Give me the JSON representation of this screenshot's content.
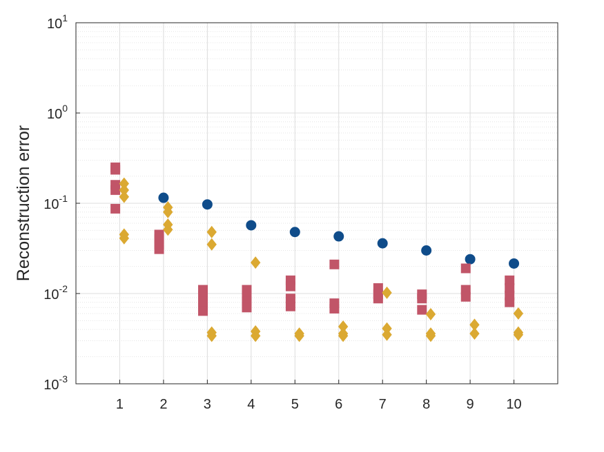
{
  "chart_data": {
    "type": "scatter",
    "title": "",
    "xlabel": "",
    "ylabel": "Reconstruction error",
    "y_scale": "log",
    "xlim": [
      0,
      11
    ],
    "ylim": [
      0.001,
      10
    ],
    "x_ticks": [
      1,
      2,
      3,
      4,
      5,
      6,
      7,
      8,
      9,
      10
    ],
    "x_tick_labels": [
      "1",
      "2",
      "3",
      "4",
      "5",
      "6",
      "7",
      "8",
      "9",
      "10"
    ],
    "y_ticks": [
      {
        "value": 0.001,
        "base": "10",
        "exp": "-3"
      },
      {
        "value": 0.01,
        "base": "10",
        "exp": "-2"
      },
      {
        "value": 0.1,
        "base": "10",
        "exp": "-1"
      },
      {
        "value": 1,
        "base": "10",
        "exp": "0"
      },
      {
        "value": 10,
        "base": "10",
        "exp": "1"
      }
    ],
    "grid": true,
    "minor_grid": true,
    "legend": "none",
    "series": [
      {
        "marker": "circle",
        "color": "#0f4c8a",
        "points": [
          [
            2,
            0.115
          ],
          [
            3,
            0.097
          ],
          [
            4,
            0.057
          ],
          [
            5,
            0.048
          ],
          [
            6,
            0.043
          ],
          [
            7,
            0.036
          ],
          [
            8,
            0.03
          ],
          [
            9,
            0.024
          ],
          [
            10,
            0.0215
          ]
        ]
      },
      {
        "marker": "square",
        "color": "#c15568",
        "points": [
          [
            0.9,
            0.25
          ],
          [
            0.9,
            0.235
          ],
          [
            0.9,
            0.16
          ],
          [
            0.9,
            0.14
          ],
          [
            0.9,
            0.087
          ],
          [
            1.9,
            0.045
          ],
          [
            1.9,
            0.04
          ],
          [
            1.9,
            0.035
          ],
          [
            1.9,
            0.031
          ],
          [
            2.9,
            0.011
          ],
          [
            2.9,
            0.0095
          ],
          [
            2.9,
            0.0082
          ],
          [
            2.9,
            0.0072
          ],
          [
            2.9,
            0.0064
          ],
          [
            3.9,
            0.011
          ],
          [
            3.9,
            0.0095
          ],
          [
            3.9,
            0.0082
          ],
          [
            3.9,
            0.007
          ],
          [
            4.9,
            0.014
          ],
          [
            4.9,
            0.012
          ],
          [
            4.9,
            0.0088
          ],
          [
            4.9,
            0.0072
          ],
          [
            5.9,
            0.021
          ],
          [
            5.9,
            0.0078
          ],
          [
            5.9,
            0.0068
          ],
          [
            6.9,
            0.0115
          ],
          [
            6.9,
            0.0098
          ],
          [
            6.9,
            0.0088
          ],
          [
            7.9,
            0.0098
          ],
          [
            7.9,
            0.0088
          ],
          [
            7.9,
            0.0066
          ],
          [
            8.9,
            0.019
          ],
          [
            8.9,
            0.011
          ],
          [
            8.9,
            0.0092
          ],
          [
            9.9,
            0.014
          ],
          [
            9.9,
            0.0115
          ],
          [
            9.9,
            0.0095
          ],
          [
            9.9,
            0.008
          ]
        ]
      },
      {
        "marker": "diamond",
        "color": "#dba932",
        "points": [
          [
            1.1,
            0.165
          ],
          [
            1.1,
            0.14
          ],
          [
            1.1,
            0.118
          ],
          [
            1.1,
            0.045
          ],
          [
            1.1,
            0.041
          ],
          [
            2.1,
            0.09
          ],
          [
            2.1,
            0.08
          ],
          [
            2.1,
            0.058
          ],
          [
            2.1,
            0.051
          ],
          [
            3.1,
            0.048
          ],
          [
            3.1,
            0.035
          ],
          [
            3.1,
            0.0037
          ],
          [
            3.1,
            0.0034
          ],
          [
            4.1,
            0.022
          ],
          [
            4.1,
            0.0038
          ],
          [
            4.1,
            0.0034
          ],
          [
            5.1,
            0.0036
          ],
          [
            5.1,
            0.0034
          ],
          [
            6.1,
            0.0043
          ],
          [
            6.1,
            0.0036
          ],
          [
            6.1,
            0.0034
          ],
          [
            7.1,
            0.0102
          ],
          [
            7.1,
            0.0041
          ],
          [
            7.1,
            0.0035
          ],
          [
            8.1,
            0.0059
          ],
          [
            8.1,
            0.0036
          ],
          [
            8.1,
            0.0034
          ],
          [
            9.1,
            0.0045
          ],
          [
            9.1,
            0.0036
          ],
          [
            10.1,
            0.006
          ],
          [
            10.1,
            0.0037
          ],
          [
            10.1,
            0.0035
          ]
        ]
      }
    ]
  }
}
